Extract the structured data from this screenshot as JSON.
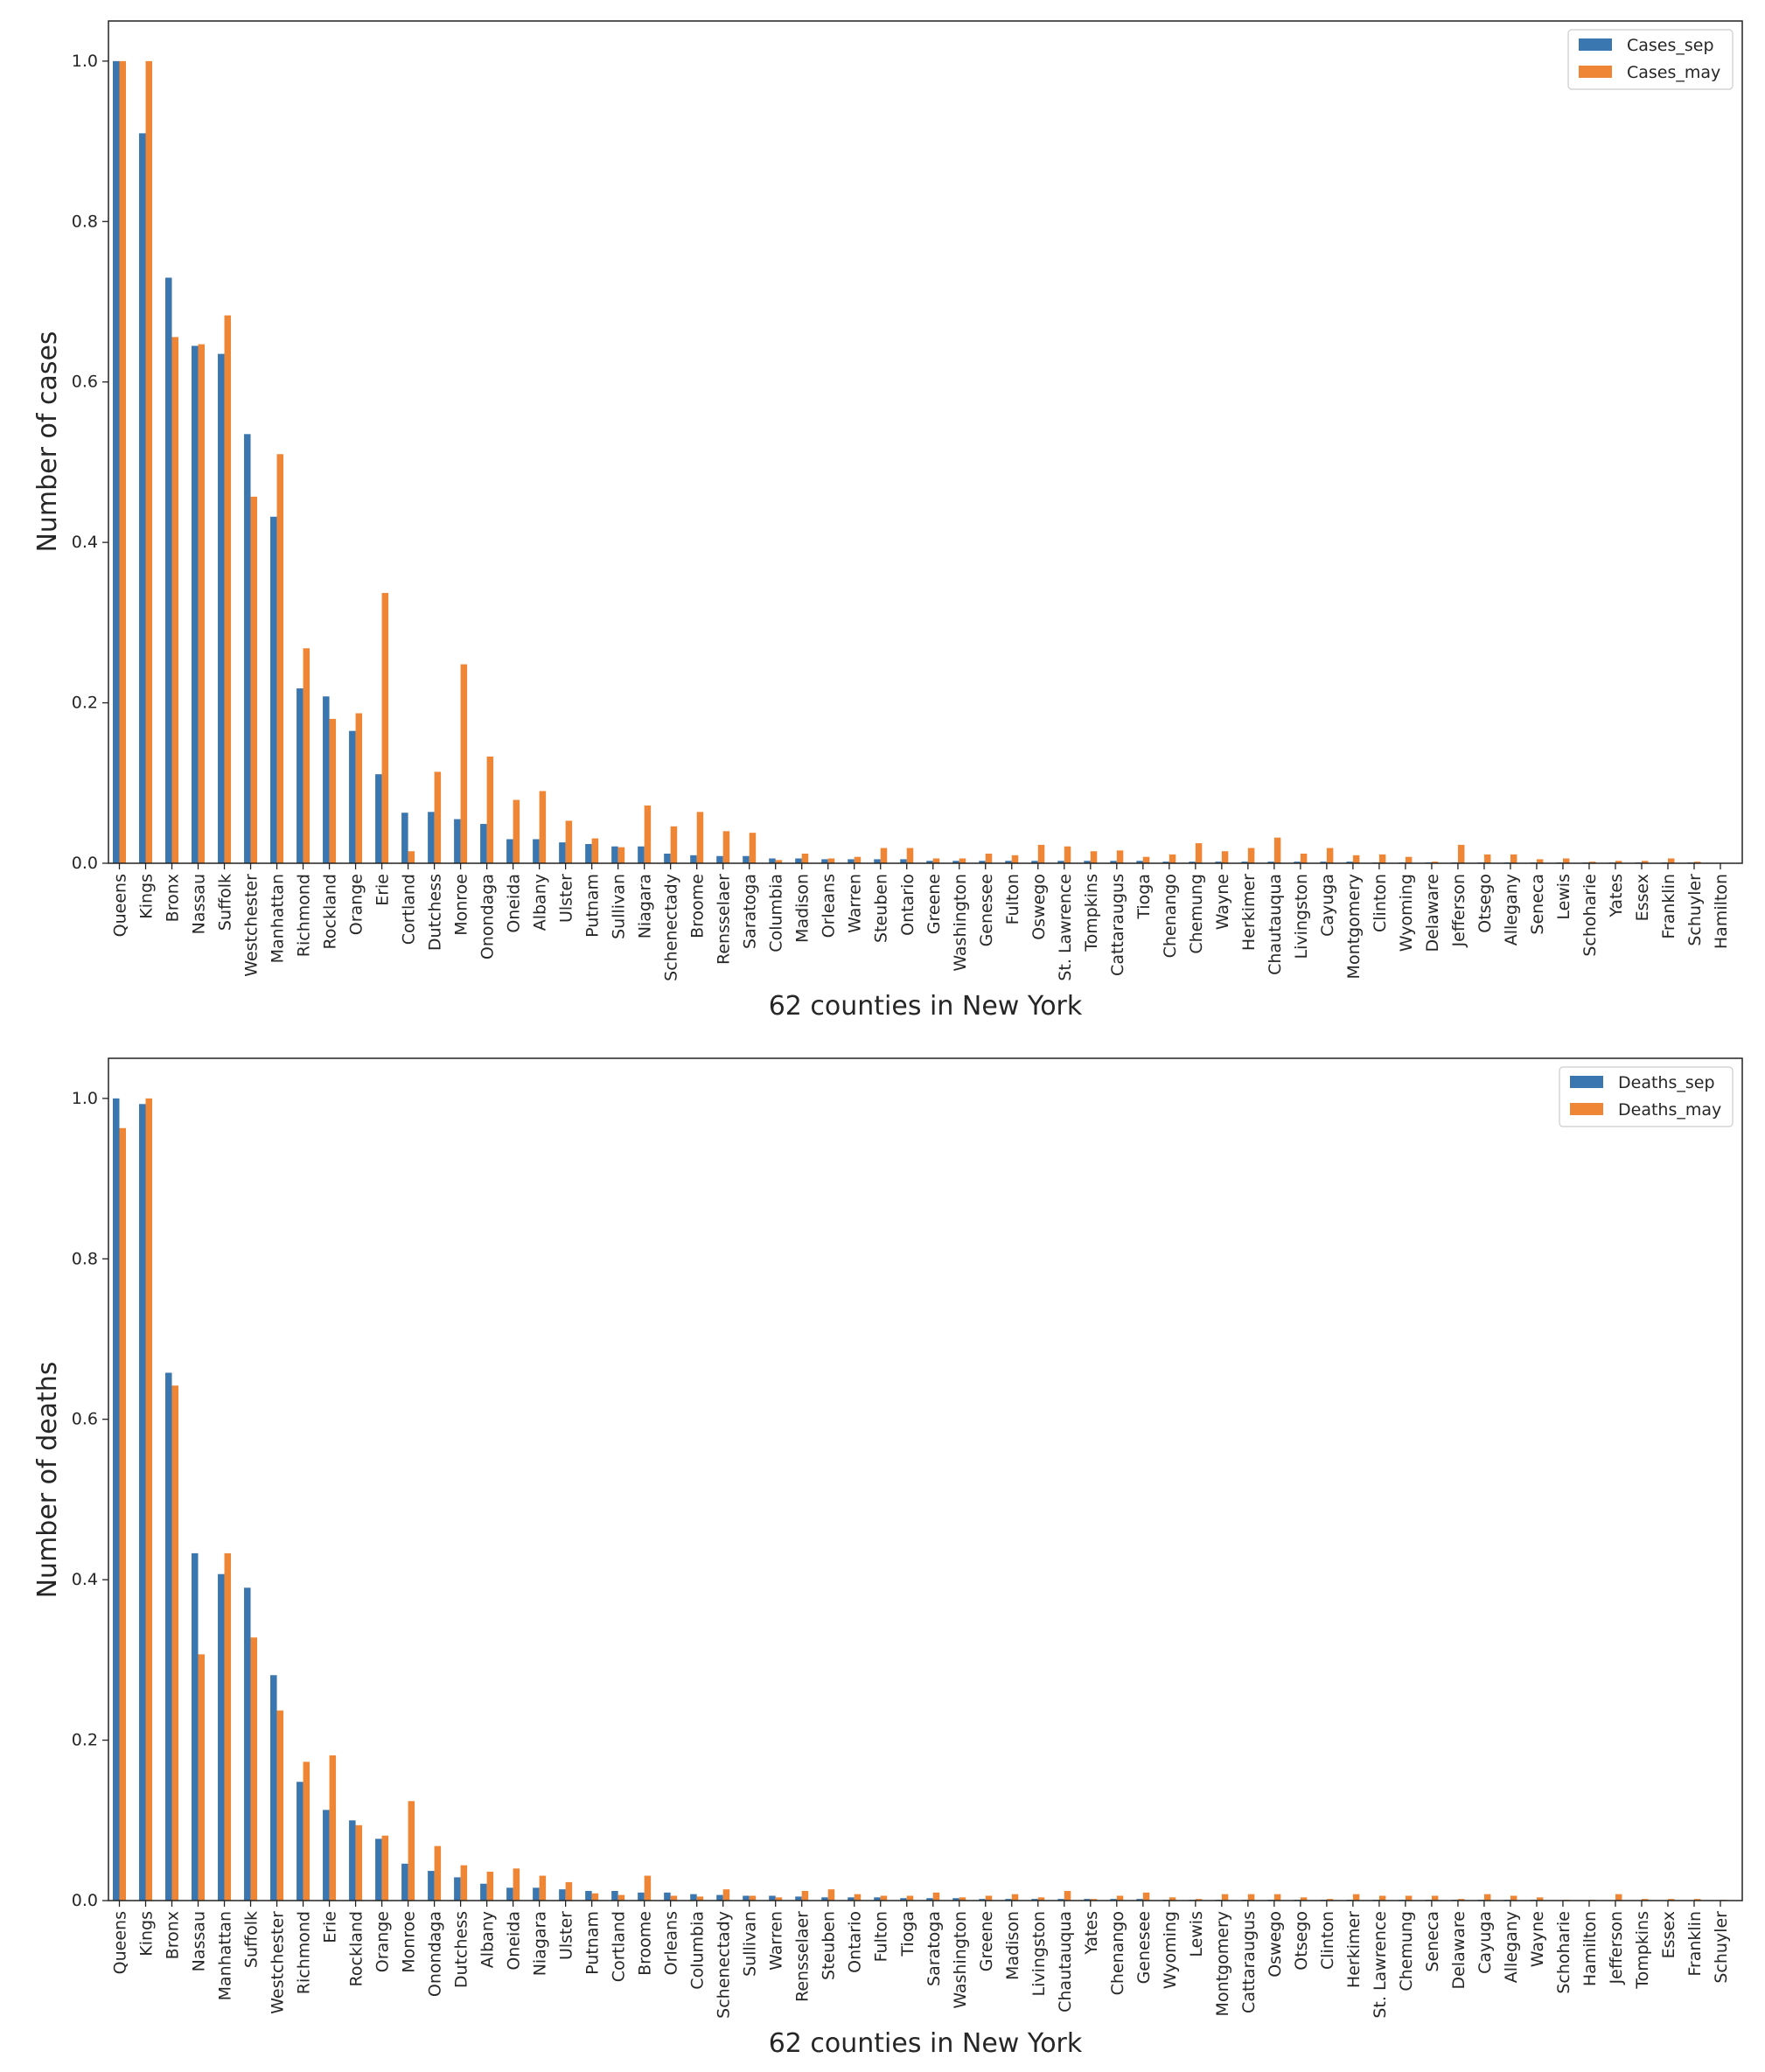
{
  "chart_data": [
    {
      "type": "bar",
      "xlabel": "62 counties in New York",
      "ylabel": "Number of cases",
      "ylim": [
        0,
        1.05
      ],
      "yticks": [
        "0.0",
        "0.2",
        "0.4",
        "0.6",
        "0.8",
        "1.0"
      ],
      "legend_position": "top-right",
      "grid": false,
      "categories": [
        "Queens",
        "Kings",
        "Bronx",
        "Nassau",
        "Suffolk",
        "Westchester",
        "Manhattan",
        "Richmond",
        "Rockland",
        "Orange",
        "Erie",
        "Cortland",
        "Dutchess",
        "Monroe",
        "Onondaga",
        "Oneida",
        "Albany",
        "Ulster",
        "Putnam",
        "Sullivan",
        "Niagara",
        "Schenectady",
        "Broome",
        "Rensselaer",
        "Saratoga",
        "Columbia",
        "Madison",
        "Orleans",
        "Warren",
        "Steuben",
        "Ontario",
        "Greene",
        "Washington",
        "Genesee",
        "Fulton",
        "Oswego",
        "St. Lawrence",
        "Tompkins",
        "Cattaraugus",
        "Tioga",
        "Chenango",
        "Chemung",
        "Wayne",
        "Herkimer",
        "Chautauqua",
        "Livingston",
        "Cayuga",
        "Montgomery",
        "Clinton",
        "Wyoming",
        "Delaware",
        "Jefferson",
        "Otsego",
        "Allegany",
        "Seneca",
        "Lewis",
        "Schoharie",
        "Yates",
        "Essex",
        "Franklin",
        "Schuyler",
        "Hamilton"
      ],
      "series": [
        {
          "name": "Cases_sep",
          "color": "#3a76af",
          "values": [
            1.0,
            0.91,
            0.73,
            0.645,
            0.635,
            0.535,
            0.432,
            0.218,
            0.208,
            0.165,
            0.111,
            0.063,
            0.064,
            0.055,
            0.049,
            0.03,
            0.03,
            0.026,
            0.024,
            0.021,
            0.021,
            0.012,
            0.01,
            0.009,
            0.009,
            0.006,
            0.006,
            0.005,
            0.005,
            0.005,
            0.005,
            0.003,
            0.003,
            0.003,
            0.003,
            0.003,
            0.003,
            0.003,
            0.003,
            0.003,
            0.002,
            0.002,
            0.002,
            0.002,
            0.002,
            0.002,
            0.002,
            0.002,
            0.001,
            0.001,
            0.001,
            0.001,
            0.001,
            0.001,
            0.001,
            0.001,
            0.001,
            0.001,
            0.001,
            0.001,
            0.001,
            0.0
          ]
        },
        {
          "name": "Cases_may",
          "color": "#ef8636",
          "values": [
            1.0,
            1.0,
            0.656,
            0.647,
            0.683,
            0.457,
            0.51,
            0.268,
            0.18,
            0.187,
            0.337,
            0.015,
            0.114,
            0.248,
            0.133,
            0.079,
            0.09,
            0.053,
            0.031,
            0.02,
            0.072,
            0.046,
            0.064,
            0.04,
            0.038,
            0.004,
            0.012,
            0.006,
            0.008,
            0.019,
            0.019,
            0.006,
            0.006,
            0.012,
            0.01,
            0.023,
            0.021,
            0.015,
            0.016,
            0.008,
            0.011,
            0.025,
            0.015,
            0.019,
            0.032,
            0.012,
            0.019,
            0.01,
            0.011,
            0.008,
            0.002,
            0.023,
            0.011,
            0.011,
            0.005,
            0.006,
            0.002,
            0.003,
            0.003,
            0.006,
            0.002,
            0.0
          ]
        }
      ]
    },
    {
      "type": "bar",
      "xlabel": "62 counties in New York",
      "ylabel": "Number of deaths",
      "ylim": [
        0,
        1.05
      ],
      "yticks": [
        "0.0",
        "0.2",
        "0.4",
        "0.6",
        "0.8",
        "1.0"
      ],
      "legend_position": "top-right",
      "grid": false,
      "categories": [
        "Queens",
        "Kings",
        "Bronx",
        "Nassau",
        "Manhattan",
        "Suffolk",
        "Westchester",
        "Richmond",
        "Erie",
        "Rockland",
        "Orange",
        "Monroe",
        "Onondaga",
        "Dutchess",
        "Albany",
        "Oneida",
        "Niagara",
        "Ulster",
        "Putnam",
        "Cortland",
        "Broome",
        "Orleans",
        "Columbia",
        "Schenectady",
        "Sullivan",
        "Warren",
        "Rensselaer",
        "Steuben",
        "Ontario",
        "Fulton",
        "Tioga",
        "Saratoga",
        "Washington",
        "Greene",
        "Madison",
        "Livingston",
        "Chautauqua",
        "Yates",
        "Chenango",
        "Genesee",
        "Wyoming",
        "Lewis",
        "Montgomery",
        "Cattaraugus",
        "Oswego",
        "Otsego",
        "Clinton",
        "Herkimer",
        "St. Lawrence",
        "Chemung",
        "Seneca",
        "Delaware",
        "Cayuga",
        "Allegany",
        "Wayne",
        "Schoharie",
        "Hamilton",
        "Jefferson",
        "Tompkins",
        "Essex",
        "Franklin",
        "Schuyler"
      ],
      "series": [
        {
          "name": "Deaths_sep",
          "color": "#3a76af",
          "values": [
            1.0,
            0.993,
            0.658,
            0.433,
            0.407,
            0.39,
            0.281,
            0.148,
            0.113,
            0.1,
            0.077,
            0.046,
            0.037,
            0.029,
            0.021,
            0.016,
            0.016,
            0.014,
            0.012,
            0.012,
            0.01,
            0.01,
            0.008,
            0.007,
            0.006,
            0.006,
            0.005,
            0.004,
            0.004,
            0.004,
            0.003,
            0.003,
            0.003,
            0.002,
            0.002,
            0.002,
            0.002,
            0.002,
            0.002,
            0.002,
            0.001,
            0.001,
            0.001,
            0.001,
            0.001,
            0.001,
            0.001,
            0.001,
            0.001,
            0.001,
            0.001,
            0.001,
            0.001,
            0.001,
            0.001,
            0.0,
            0.0,
            0.0,
            0.0,
            0.0,
            0.0,
            0.0
          ]
        },
        {
          "name": "Deaths_may",
          "color": "#ef8636",
          "values": [
            0.963,
            1.0,
            0.642,
            0.307,
            0.433,
            0.328,
            0.237,
            0.173,
            0.181,
            0.094,
            0.081,
            0.124,
            0.068,
            0.044,
            0.036,
            0.04,
            0.031,
            0.023,
            0.009,
            0.007,
            0.031,
            0.006,
            0.005,
            0.014,
            0.006,
            0.004,
            0.012,
            0.014,
            0.008,
            0.006,
            0.006,
            0.01,
            0.004,
            0.006,
            0.008,
            0.004,
            0.012,
            0.002,
            0.006,
            0.01,
            0.004,
            0.002,
            0.008,
            0.008,
            0.008,
            0.004,
            0.002,
            0.008,
            0.006,
            0.006,
            0.006,
            0.002,
            0.008,
            0.006,
            0.004,
            0.001,
            0.001,
            0.008,
            0.002,
            0.002,
            0.002,
            0.001
          ]
        }
      ]
    }
  ]
}
